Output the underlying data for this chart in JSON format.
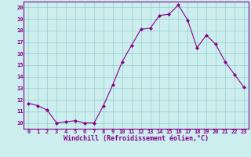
{
  "x": [
    0,
    1,
    2,
    3,
    4,
    5,
    6,
    7,
    8,
    9,
    10,
    11,
    12,
    13,
    14,
    15,
    16,
    17,
    18,
    19,
    20,
    21,
    22,
    23
  ],
  "y": [
    11.7,
    11.5,
    11.1,
    10.0,
    10.1,
    10.2,
    10.0,
    10.0,
    11.5,
    13.3,
    15.3,
    16.7,
    18.1,
    18.2,
    19.3,
    19.4,
    20.2,
    18.9,
    16.5,
    17.6,
    16.8,
    15.3,
    14.2,
    13.1
  ],
  "line_color": "#880088",
  "marker": "D",
  "marker_size": 2.0,
  "bg_color": "#cceeee",
  "grid_color": "#99cccc",
  "xlabel": "Windchill (Refroidissement éolien,°C)",
  "xlabel_color": "#880088",
  "xlim": [
    -0.5,
    23.5
  ],
  "ylim": [
    9.5,
    20.5
  ],
  "yticks": [
    10,
    11,
    12,
    13,
    14,
    15,
    16,
    17,
    18,
    19,
    20
  ],
  "xticks": [
    0,
    1,
    2,
    3,
    4,
    5,
    6,
    7,
    8,
    9,
    10,
    11,
    12,
    13,
    14,
    15,
    16,
    17,
    18,
    19,
    20,
    21,
    22,
    23
  ],
  "tick_color": "#880088",
  "tick_fontsize": 5.0,
  "xlabel_fontsize": 6.0,
  "linewidth": 0.8
}
